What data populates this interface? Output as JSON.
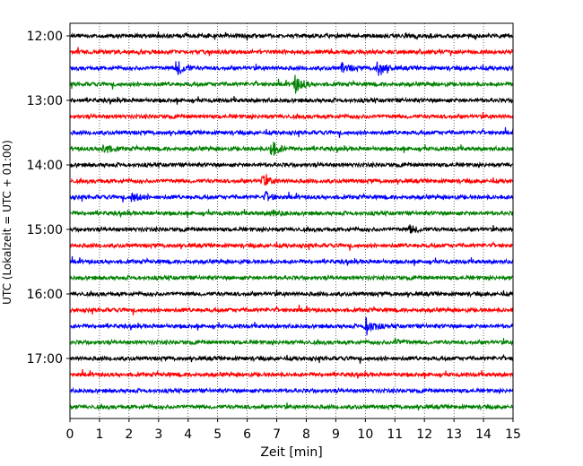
{
  "chart_data": {
    "type": "line",
    "title": "",
    "xlabel": "Zeit  [min]",
    "ylabel": "UTC (Lokalzeit = UTC + 01:00)",
    "xlim": [
      0,
      15
    ],
    "xticks": [
      "0",
      "1",
      "2",
      "3",
      "4",
      "5",
      "6",
      "7",
      "8",
      "9",
      "10",
      "11",
      "12",
      "13",
      "14",
      "15"
    ],
    "ytick_labels": [
      "12:00",
      "13:00",
      "14:00",
      "15:00",
      "16:00",
      "17:00"
    ],
    "grid": "vertical dotted at each minute",
    "trace_interval_minutes": 15,
    "colors": [
      "#000000",
      "#ff0000",
      "#0000ff",
      "#008000"
    ],
    "series": [
      {
        "start": "12:00",
        "color": "#000000",
        "events": []
      },
      {
        "start": "12:15",
        "color": "#ff0000",
        "events": []
      },
      {
        "start": "12:30",
        "color": "#0000ff",
        "events": [
          {
            "t": 3.6,
            "amplitude": 0.55
          },
          {
            "t": 9.2,
            "amplitude": 0.3
          },
          {
            "t": 10.4,
            "amplitude": 0.6
          }
        ]
      },
      {
        "start": "12:45",
        "color": "#008000",
        "events": [
          {
            "t": 7.6,
            "amplitude": 0.6
          }
        ]
      },
      {
        "start": "13:00",
        "color": "#000000",
        "events": []
      },
      {
        "start": "13:15",
        "color": "#ff0000",
        "events": []
      },
      {
        "start": "13:30",
        "color": "#0000ff",
        "events": []
      },
      {
        "start": "13:45",
        "color": "#008000",
        "events": [
          {
            "t": 1.1,
            "amplitude": 0.35
          },
          {
            "t": 6.8,
            "amplitude": 0.55
          }
        ]
      },
      {
        "start": "14:00",
        "color": "#000000",
        "events": []
      },
      {
        "start": "14:15",
        "color": "#ff0000",
        "events": [
          {
            "t": 6.5,
            "amplitude": 0.35
          }
        ]
      },
      {
        "start": "14:30",
        "color": "#0000ff",
        "events": [
          {
            "t": 2.1,
            "amplitude": 0.35
          },
          {
            "t": 6.6,
            "amplitude": 0.3
          }
        ]
      },
      {
        "start": "14:45",
        "color": "#008000",
        "events": [
          {
            "t": 6.8,
            "amplitude": 0.25
          }
        ]
      },
      {
        "start": "15:00",
        "color": "#000000",
        "events": [
          {
            "t": 11.5,
            "amplitude": 0.25
          }
        ]
      },
      {
        "start": "15:15",
        "color": "#ff0000",
        "events": []
      },
      {
        "start": "15:30",
        "color": "#0000ff",
        "events": []
      },
      {
        "start": "15:45",
        "color": "#008000",
        "events": []
      },
      {
        "start": "16:00",
        "color": "#000000",
        "events": []
      },
      {
        "start": "16:15",
        "color": "#ff0000",
        "events": []
      },
      {
        "start": "16:30",
        "color": "#0000ff",
        "events": [
          {
            "t": 10.0,
            "amplitude": 0.6
          }
        ]
      },
      {
        "start": "16:45",
        "color": "#008000",
        "events": [
          {
            "t": 11.0,
            "amplitude": 0.2
          }
        ]
      },
      {
        "start": "17:00",
        "color": "#000000",
        "events": []
      },
      {
        "start": "17:15",
        "color": "#ff0000",
        "events": []
      },
      {
        "start": "17:30",
        "color": "#0000ff",
        "events": []
      },
      {
        "start": "17:45",
        "color": "#008000",
        "events": []
      }
    ]
  }
}
